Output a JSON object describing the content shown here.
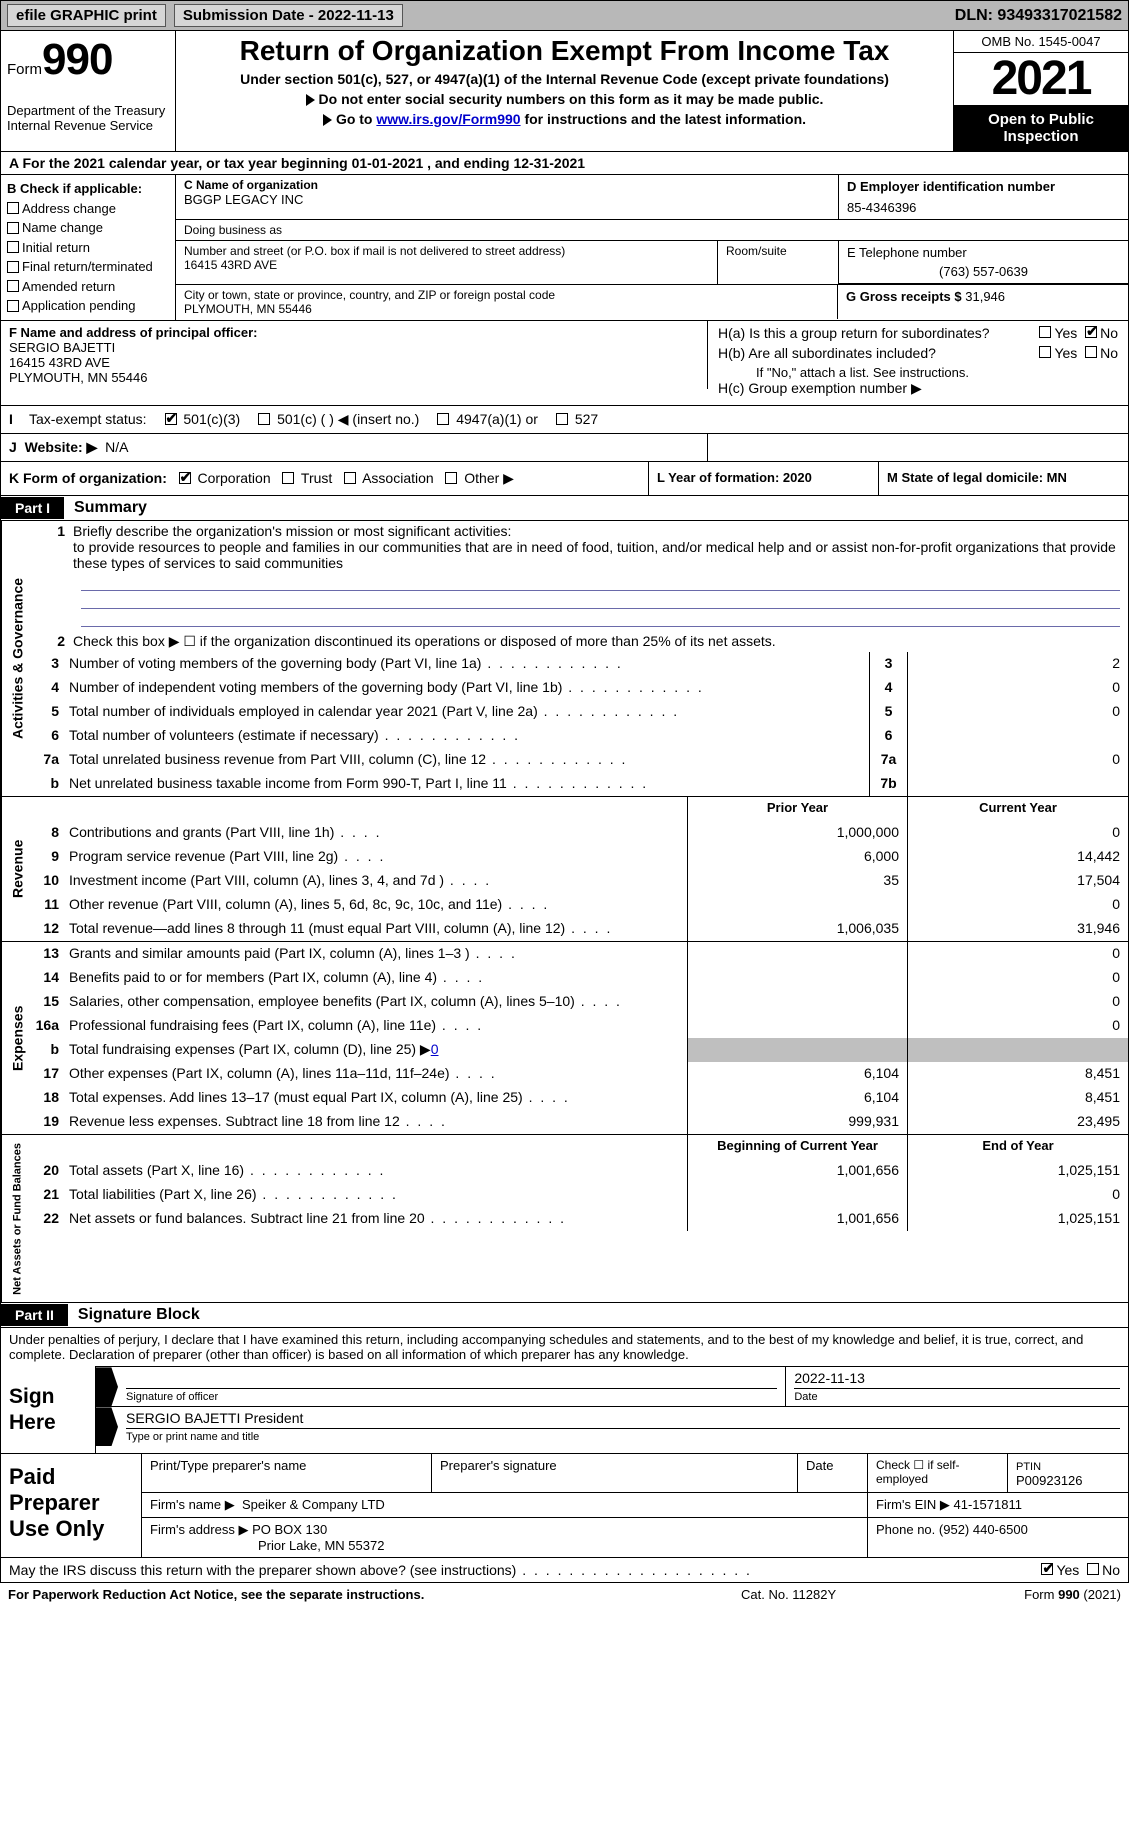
{
  "topbar": {
    "efile": "efile GRAPHIC print",
    "sub_label": "Submission Date - 2022-11-13",
    "dln": "DLN: 93493317021582"
  },
  "header": {
    "form_word": "Form",
    "form_num": "990",
    "dept": "Department of the Treasury\nInternal Revenue Service",
    "title": "Return of Organization Exempt From Income Tax",
    "sub": "Under section 501(c), 527, or 4947(a)(1) of the Internal Revenue Code (except private foundations)",
    "note1": "Do not enter social security numbers on this form as it may be made public.",
    "note2_pre": "Go to ",
    "note2_link": "www.irs.gov/Form990",
    "note2_post": " for instructions and the latest information.",
    "omb": "OMB No. 1545-0047",
    "year": "2021",
    "inspect": "Open to Public Inspection"
  },
  "rowA": "A  For the 2021 calendar year, or tax year beginning 01-01-2021    , and ending 12-31-2021",
  "colB": {
    "head": "B Check if applicable:",
    "items": [
      "Address change",
      "Name change",
      "Initial return",
      "Final return/terminated",
      "Amended return",
      "Application pending"
    ]
  },
  "colC": {
    "name_lbl": "C Name of organization",
    "name": "BGGP LEGACY INC",
    "dba_lbl": "Doing business as",
    "addr_lbl": "Number and street (or P.O. box if mail is not delivered to street address)",
    "suite_lbl": "Room/suite",
    "addr": "16415 43RD AVE",
    "city_lbl": "City or town, state or province, country, and ZIP or foreign postal code",
    "city": "PLYMOUTH, MN  55446"
  },
  "colD": {
    "lbl": "D Employer identification number",
    "val": "85-4346396"
  },
  "colE": {
    "tel_lbl": "E Telephone number",
    "tel": "(763) 557-0639",
    "gross_lbl": "G Gross receipts $",
    "gross": "31,946"
  },
  "f": {
    "lbl": "F Name and address of principal officer:",
    "name": "SERGIO BAJETTI",
    "addr1": "16415 43RD AVE",
    "addr2": "PLYMOUTH, MN  55446"
  },
  "h": {
    "a": "H(a)  Is this a group return for subordinates?",
    "b": "H(b)  Are all subordinates included?",
    "b_note": "If \"No,\" attach a list. See instructions.",
    "c": "H(c)  Group exemption number ▶",
    "yes": "Yes",
    "no": "No"
  },
  "i": {
    "lead": "I",
    "lbl": "Tax-exempt status:",
    "opts": [
      "501(c)(3)",
      "501(c) (  ) ◀ (insert no.)",
      "4947(a)(1) or",
      "527"
    ]
  },
  "j": {
    "lead": "J",
    "lbl": "Website: ▶",
    "val": "N/A"
  },
  "k": {
    "lbl": "K Form of organization:",
    "opts": [
      "Corporation",
      "Trust",
      "Association",
      "Other ▶"
    ],
    "l": "L Year of formation: 2020",
    "m": "M State of legal domicile: MN"
  },
  "parts": {
    "p1": "Part I",
    "p1_title": "Summary",
    "p2": "Part II",
    "p2_title": "Signature Block"
  },
  "mission": {
    "lead": "1",
    "lbl": "Briefly describe the organization's mission or most significant activities:",
    "text": "to provide resources to people and families in our communities that are in need of food, tuition, and/or medical help and or assist non-for-profit organizations that provide these types of services to said communities"
  },
  "lines_ag": [
    {
      "n": "2",
      "t": "Check this box ▶ ☐  if the organization discontinued its operations or disposed of more than 25% of its net assets."
    },
    {
      "n": "3",
      "t": "Number of voting members of the governing body (Part VI, line 1a)",
      "box": "3",
      "v": "2"
    },
    {
      "n": "4",
      "t": "Number of independent voting members of the governing body (Part VI, line 1b)",
      "box": "4",
      "v": "0"
    },
    {
      "n": "5",
      "t": "Total number of individuals employed in calendar year 2021 (Part V, line 2a)",
      "box": "5",
      "v": "0"
    },
    {
      "n": "6",
      "t": "Total number of volunteers (estimate if necessary)",
      "box": "6",
      "v": ""
    },
    {
      "n": "7a",
      "t": "Total unrelated business revenue from Part VIII, column (C), line 12",
      "box": "7a",
      "v": "0"
    },
    {
      "n": "b",
      "t": "Net unrelated business taxable income from Form 990-T, Part I, line 11",
      "box": "7b",
      "v": ""
    }
  ],
  "rev_hdr": {
    "prior": "Prior Year",
    "curr": "Current Year"
  },
  "revenue": [
    {
      "n": "8",
      "t": "Contributions and grants (Part VIII, line 1h)",
      "p": "1,000,000",
      "c": "0"
    },
    {
      "n": "9",
      "t": "Program service revenue (Part VIII, line 2g)",
      "p": "6,000",
      "c": "14,442"
    },
    {
      "n": "10",
      "t": "Investment income (Part VIII, column (A), lines 3, 4, and 7d )",
      "p": "35",
      "c": "17,504"
    },
    {
      "n": "11",
      "t": "Other revenue (Part VIII, column (A), lines 5, 6d, 8c, 9c, 10c, and 11e)",
      "p": "",
      "c": "0"
    },
    {
      "n": "12",
      "t": "Total revenue—add lines 8 through 11 (must equal Part VIII, column (A), line 12)",
      "p": "1,006,035",
      "c": "31,946"
    }
  ],
  "expenses": [
    {
      "n": "13",
      "t": "Grants and similar amounts paid (Part IX, column (A), lines 1–3 )",
      "p": "",
      "c": "0"
    },
    {
      "n": "14",
      "t": "Benefits paid to or for members (Part IX, column (A), line 4)",
      "p": "",
      "c": "0"
    },
    {
      "n": "15",
      "t": "Salaries, other compensation, employee benefits (Part IX, column (A), lines 5–10)",
      "p": "",
      "c": "0"
    },
    {
      "n": "16a",
      "t": "Professional fundraising fees (Part IX, column (A), line 11e)",
      "p": "",
      "c": "0"
    },
    {
      "n": "b",
      "t": "Total fundraising expenses (Part IX, column (D), line 25) ▶",
      "link": "0",
      "grey": true
    },
    {
      "n": "17",
      "t": "Other expenses (Part IX, column (A), lines 11a–11d, 11f–24e)",
      "p": "6,104",
      "c": "8,451"
    },
    {
      "n": "18",
      "t": "Total expenses. Add lines 13–17 (must equal Part IX, column (A), line 25)",
      "p": "6,104",
      "c": "8,451"
    },
    {
      "n": "19",
      "t": "Revenue less expenses. Subtract line 18 from line 12",
      "p": "999,931",
      "c": "23,495"
    }
  ],
  "na_hdr": {
    "prior": "Beginning of Current Year",
    "curr": "End of Year"
  },
  "netassets": [
    {
      "n": "20",
      "t": "Total assets (Part X, line 16)",
      "p": "1,001,656",
      "c": "1,025,151"
    },
    {
      "n": "21",
      "t": "Total liabilities (Part X, line 26)",
      "p": "",
      "c": "0"
    },
    {
      "n": "22",
      "t": "Net assets or fund balances. Subtract line 21 from line 20",
      "p": "1,001,656",
      "c": "1,025,151"
    }
  ],
  "sig": {
    "decl": "Under penalties of perjury, I declare that I have examined this return, including accompanying schedules and statements, and to the best of my knowledge and belief, it is true, correct, and complete. Declaration of preparer (other than officer) is based on all information of which preparer has any knowledge.",
    "sign_here": "Sign Here",
    "sig_officer": "Signature of officer",
    "date_val": "2022-11-13",
    "date_lbl": "Date",
    "name": "SERGIO BAJETTI President",
    "name_lbl": "Type or print name and title"
  },
  "paid": {
    "title": "Paid Preparer Use Only",
    "h_name": "Print/Type preparer's name",
    "h_sig": "Preparer's signature",
    "h_date": "Date",
    "h_check": "Check ☐ if self-employed",
    "h_ptin": "PTIN",
    "ptin": "P00923126",
    "firm_lbl": "Firm's name    ▶",
    "firm": "Speiker & Company LTD",
    "ein_lbl": "Firm's EIN ▶",
    "ein": "41-1571811",
    "addr_lbl": "Firm's address ▶",
    "addr1": "PO BOX 130",
    "addr2": "Prior Lake, MN  55372",
    "phone_lbl": "Phone no.",
    "phone": "(952) 440-6500"
  },
  "discuss": "May the IRS discuss this return with the preparer shown above? (see instructions)",
  "footer": {
    "left": "For Paperwork Reduction Act Notice, see the separate instructions.",
    "mid": "Cat. No. 11282Y",
    "right_pre": "Form ",
    "right_b": "990",
    "right_post": " (2021)"
  }
}
